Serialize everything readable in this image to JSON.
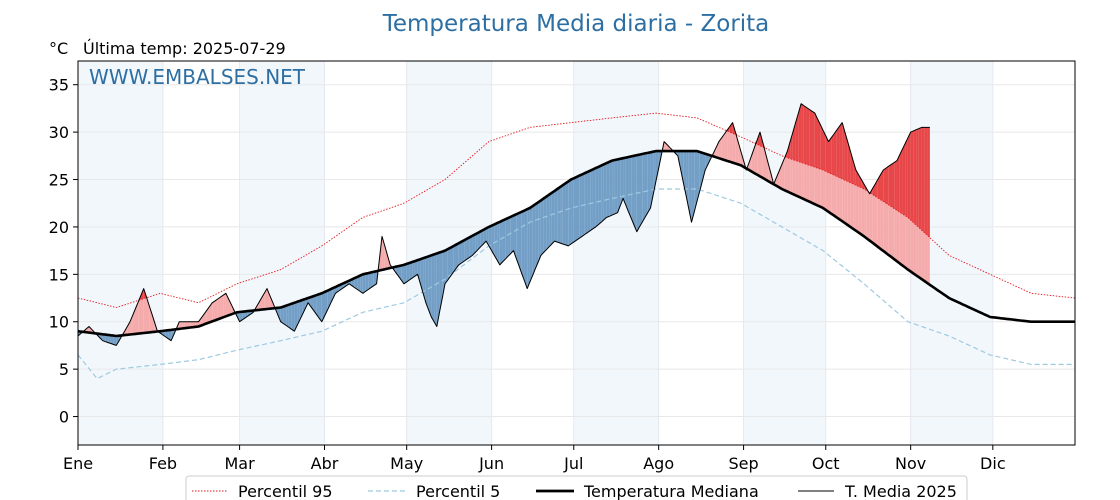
{
  "chart_data": {
    "type": "line",
    "title": "Temperatura Media diaria - Zorita",
    "unit_label": "°C",
    "subtitle": "Última temp: 2025-07-29",
    "watermark": "WWW.EMBALSES.NET",
    "ylim": [
      -3,
      37.5
    ],
    "yticks": [
      0,
      5,
      10,
      15,
      20,
      25,
      30,
      35
    ],
    "months": [
      "Ene",
      "Feb",
      "Mar",
      "Abr",
      "May",
      "Jun",
      "Jul",
      "Ago",
      "Sep",
      "Oct",
      "Nov",
      "Dic"
    ],
    "grid": true,
    "legend_position": "bottom",
    "colors": {
      "title": "#2e6fa3",
      "p95": "#e31a1c",
      "p5": "#9ecae1",
      "median": "#000000",
      "current": "#000000",
      "above_fill": "#f4a6a6",
      "above_fill_strong": "#e8474a",
      "below_fill": "#6c9ac4",
      "band": "#f2f7fc"
    },
    "series": [
      {
        "name": "Percentil 95",
        "style": "dotted",
        "keypoints": [
          [
            1,
            12.5
          ],
          [
            15,
            11.5
          ],
          [
            31,
            13
          ],
          [
            45,
            12
          ],
          [
            59,
            14
          ],
          [
            75,
            15.5
          ],
          [
            90,
            18
          ],
          [
            105,
            21
          ],
          [
            120,
            22.5
          ],
          [
            135,
            25
          ],
          [
            151,
            29
          ],
          [
            166,
            30.5
          ],
          [
            181,
            31
          ],
          [
            196,
            31.5
          ],
          [
            212,
            32
          ],
          [
            227,
            31.5
          ],
          [
            243,
            29.5
          ],
          [
            258,
            27.5
          ],
          [
            273,
            26
          ],
          [
            288,
            24
          ],
          [
            304,
            21
          ],
          [
            319,
            17
          ],
          [
            334,
            15
          ],
          [
            349,
            13
          ],
          [
            365,
            12.5
          ]
        ]
      },
      {
        "name": "Percentil 5",
        "style": "dashed",
        "keypoints": [
          [
            1,
            6.5
          ],
          [
            8,
            4
          ],
          [
            15,
            5
          ],
          [
            31,
            5.5
          ],
          [
            45,
            6
          ],
          [
            59,
            7
          ],
          [
            75,
            8
          ],
          [
            90,
            9
          ],
          [
            105,
            11
          ],
          [
            120,
            12
          ],
          [
            135,
            14.5
          ],
          [
            151,
            18
          ],
          [
            166,
            20.5
          ],
          [
            181,
            22
          ],
          [
            196,
            23
          ],
          [
            212,
            24
          ],
          [
            227,
            24
          ],
          [
            243,
            22.5
          ],
          [
            258,
            20
          ],
          [
            273,
            17.5
          ],
          [
            288,
            14
          ],
          [
            304,
            10
          ],
          [
            319,
            8.5
          ],
          [
            334,
            6.5
          ],
          [
            349,
            5.5
          ],
          [
            365,
            5.5
          ]
        ]
      },
      {
        "name": "Temperatura Mediana",
        "style": "solid-thick",
        "keypoints": [
          [
            1,
            9
          ],
          [
            15,
            8.5
          ],
          [
            31,
            9
          ],
          [
            45,
            9.5
          ],
          [
            59,
            11
          ],
          [
            75,
            11.5
          ],
          [
            90,
            13
          ],
          [
            105,
            15
          ],
          [
            120,
            16
          ],
          [
            135,
            17.5
          ],
          [
            151,
            20
          ],
          [
            166,
            22
          ],
          [
            181,
            25
          ],
          [
            196,
            27
          ],
          [
            212,
            28
          ],
          [
            227,
            28
          ],
          [
            243,
            26.5
          ],
          [
            258,
            24
          ],
          [
            273,
            22
          ],
          [
            288,
            19
          ],
          [
            304,
            15.5
          ],
          [
            319,
            12.5
          ],
          [
            334,
            10.5
          ],
          [
            349,
            10
          ],
          [
            365,
            10
          ]
        ]
      },
      {
        "name": "T. Media 2025",
        "style": "solid-thin",
        "keypoints": [
          [
            1,
            8.5
          ],
          [
            5,
            9.5
          ],
          [
            10,
            8
          ],
          [
            15,
            7.5
          ],
          [
            20,
            10
          ],
          [
            25,
            13.5
          ],
          [
            30,
            9
          ],
          [
            35,
            8
          ],
          [
            38,
            10
          ],
          [
            45,
            10
          ],
          [
            50,
            12
          ],
          [
            55,
            13
          ],
          [
            60,
            10
          ],
          [
            65,
            11
          ],
          [
            70,
            13.5
          ],
          [
            75,
            10
          ],
          [
            80,
            9
          ],
          [
            85,
            12
          ],
          [
            90,
            10
          ],
          [
            95,
            13
          ],
          [
            100,
            14
          ],
          [
            105,
            13
          ],
          [
            110,
            14
          ],
          [
            112,
            19
          ],
          [
            115,
            16
          ],
          [
            120,
            14
          ],
          [
            125,
            15
          ],
          [
            128,
            12
          ],
          [
            130,
            10.5
          ],
          [
            132,
            9.5
          ],
          [
            135,
            14
          ],
          [
            140,
            16
          ],
          [
            145,
            17
          ],
          [
            150,
            18.5
          ],
          [
            155,
            16
          ],
          [
            160,
            17.5
          ],
          [
            165,
            13.5
          ],
          [
            170,
            17
          ],
          [
            175,
            18.5
          ],
          [
            180,
            18
          ],
          [
            185,
            19
          ],
          [
            190,
            20
          ],
          [
            194,
            21
          ],
          [
            198,
            21.5
          ],
          [
            200,
            23
          ],
          [
            205,
            19.5
          ],
          [
            210,
            22
          ],
          [
            215,
            29
          ],
          [
            220,
            27.5
          ],
          [
            225,
            20.5
          ],
          [
            230,
            26
          ],
          [
            235,
            29
          ],
          [
            240,
            31
          ],
          [
            245,
            26
          ],
          [
            250,
            30
          ],
          [
            255,
            24.5
          ],
          [
            260,
            28
          ],
          [
            265,
            33
          ],
          [
            270,
            32
          ],
          [
            275,
            29
          ],
          [
            280,
            31
          ],
          [
            285,
            26
          ],
          [
            290,
            23.5
          ],
          [
            295,
            26
          ],
          [
            300,
            27
          ],
          [
            305,
            30
          ],
          [
            309,
            30.5
          ],
          [
            312,
            30.5
          ]
        ]
      }
    ]
  },
  "legend": [
    {
      "label": "Percentil 95",
      "key": "p95"
    },
    {
      "label": "Percentil 5",
      "key": "p5"
    },
    {
      "label": "Temperatura Mediana",
      "key": "median"
    },
    {
      "label": "T. Media 2025",
      "key": "current"
    }
  ]
}
